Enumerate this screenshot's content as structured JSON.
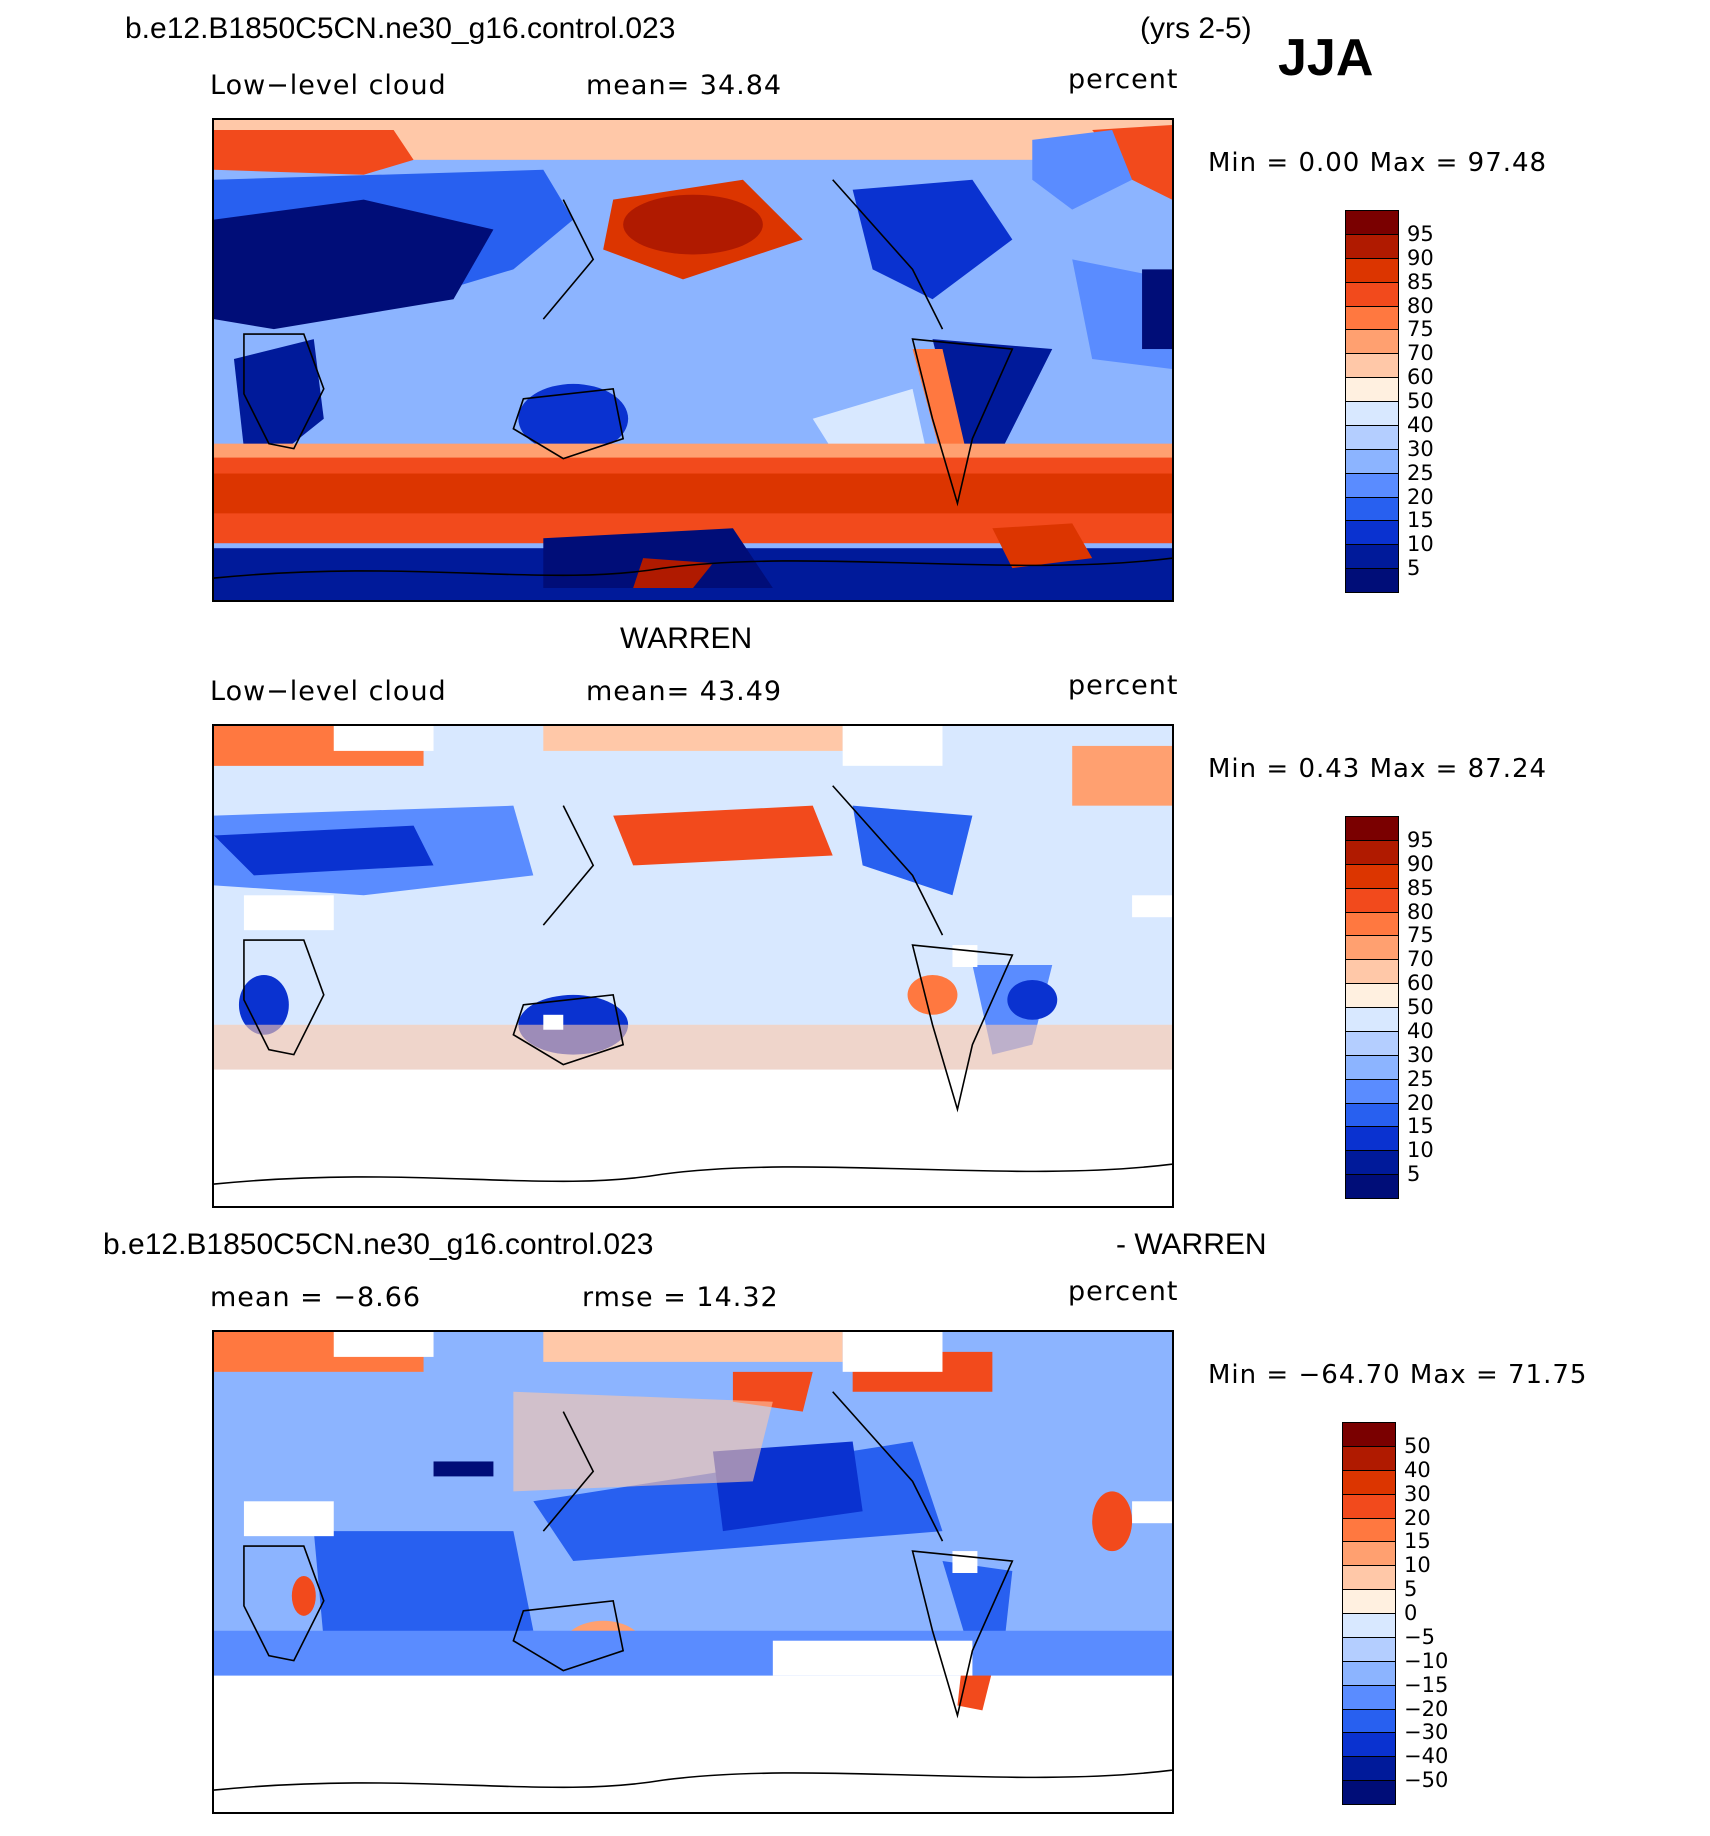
{
  "header": {
    "case_name": "b.e12.B1850C5CN.ne30_g16.control.023",
    "years": "(yrs 2-5)",
    "season": "JJA"
  },
  "panels": [
    {
      "id": "model",
      "title": "",
      "variable": "Low−level cloud",
      "stat": "mean=   34.84",
      "units": "percent",
      "minmax": "Min =    0.00  Max =   97.48",
      "colorbar_labels": [
        "95",
        "90",
        "85",
        "80",
        "75",
        "70",
        "60",
        "50",
        "40",
        "30",
        "25",
        "20",
        "15",
        "10",
        "5"
      ]
    },
    {
      "id": "obs",
      "title": "WARREN",
      "variable": "Low−level cloud",
      "stat": "mean=   43.49",
      "units": "percent",
      "minmax": "Min =    0.43  Max =   87.24",
      "colorbar_labels": [
        "95",
        "90",
        "85",
        "80",
        "75",
        "70",
        "60",
        "50",
        "40",
        "30",
        "25",
        "20",
        "15",
        "10",
        "5"
      ]
    },
    {
      "id": "diff",
      "title_left": "b.e12.B1850C5CN.ne30_g16.control.023",
      "title_right": "- WARREN",
      "variable": "mean  =   −8.66",
      "stat": "rmse  =    14.32",
      "units": "percent",
      "minmax": "Min = −64.70  Max =   71.75",
      "colorbar_labels": [
        "50",
        "40",
        "30",
        "20",
        "15",
        "10",
        "5",
        "0",
        "−5",
        "−10",
        "−15",
        "−20",
        "−30",
        "−40",
        "−50"
      ]
    }
  ],
  "colors": {
    "scale": [
      "#7a0000",
      "#b01a00",
      "#dc3500",
      "#f24a1c",
      "#ff7840",
      "#ffa070",
      "#ffc8a8",
      "#fff0e0",
      "#d8e8ff",
      "#b4ceff",
      "#8cb4ff",
      "#5a8cff",
      "#2860f0",
      "#0a32d0",
      "#001a9a",
      "#000d78"
    ]
  }
}
